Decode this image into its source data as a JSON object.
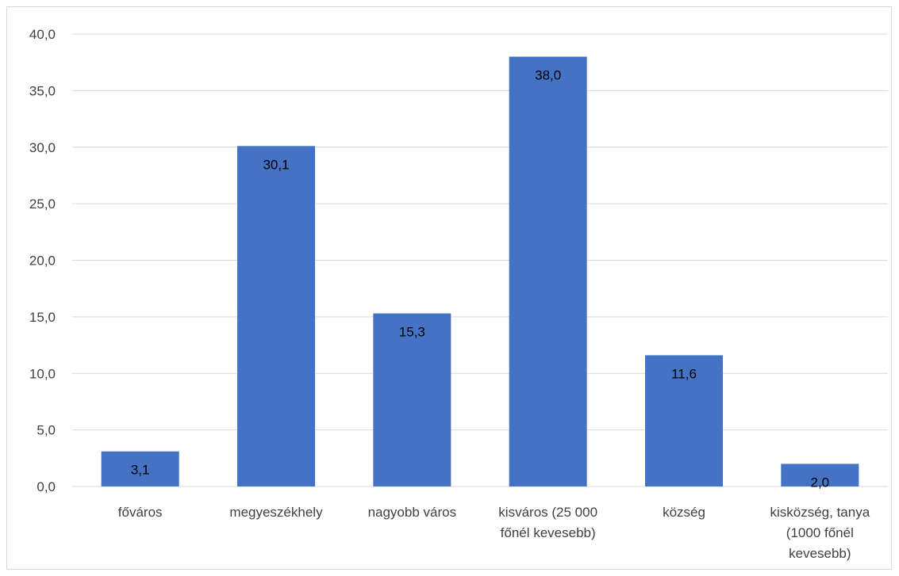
{
  "chart_data": {
    "type": "bar",
    "categories": [
      [
        "főváros"
      ],
      [
        "megyeszékhely"
      ],
      [
        "nagyobb város"
      ],
      [
        "kisváros (25 000",
        "főnél kevesebb)"
      ],
      [
        "község"
      ],
      [
        "kisközség, tanya",
        "(1000 főnél",
        "kevesebb)"
      ]
    ],
    "values": [
      3.1,
      30.1,
      15.3,
      38.0,
      11.6,
      2.0
    ],
    "data_labels": [
      "3,1",
      "30,1",
      "15,3",
      "38,0",
      "11,6",
      "2,0"
    ],
    "ylim": [
      0,
      40
    ],
    "yticks": [
      "0,0",
      "5,0",
      "10,0",
      "15,0",
      "20,0",
      "25,0",
      "30,0",
      "35,0",
      "40,0"
    ],
    "ytick_values": [
      0,
      5,
      10,
      15,
      20,
      25,
      30,
      35,
      40
    ],
    "grid": true,
    "legend": "none",
    "colors": {
      "bar": "#4472c4",
      "grid": "#d9d9d9",
      "tick_text": "#404040",
      "label_text": "#000000"
    }
  }
}
